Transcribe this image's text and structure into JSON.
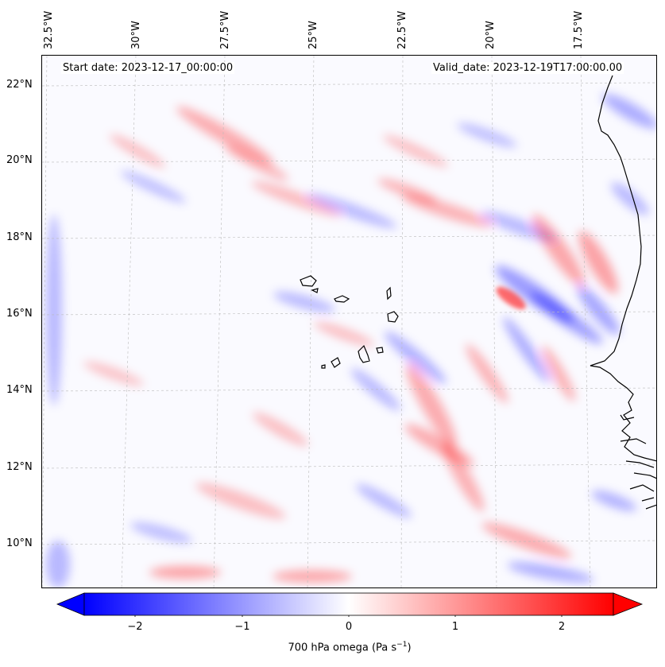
{
  "map": {
    "start_date": "Start date: 2023-12-17_00:00:00",
    "valid_date": "Valid_date: 2023-12-19T17:00:00.00",
    "lat_labels": [
      "22°N",
      "20°N",
      "18°N",
      "16°N",
      "14°N",
      "12°N",
      "10°N"
    ],
    "lon_labels": [
      "32.5°W",
      "30°W",
      "27.5°W",
      "25°W",
      "22.5°W",
      "20°W",
      "17.5°W"
    ],
    "field": "700 hPa omega",
    "colors": {
      "negative": "#0000ff",
      "zero": "#ffffff",
      "positive": "#ff0000",
      "coastline": "#000000"
    }
  },
  "colorbar": {
    "ticks": [
      "−2",
      "−1",
      "0",
      "1",
      "2"
    ],
    "min": -2.6,
    "max": 2.6,
    "label_text": "700 hPa omega (Pa s",
    "label_sup": "−1",
    "label_close": ")"
  }
}
